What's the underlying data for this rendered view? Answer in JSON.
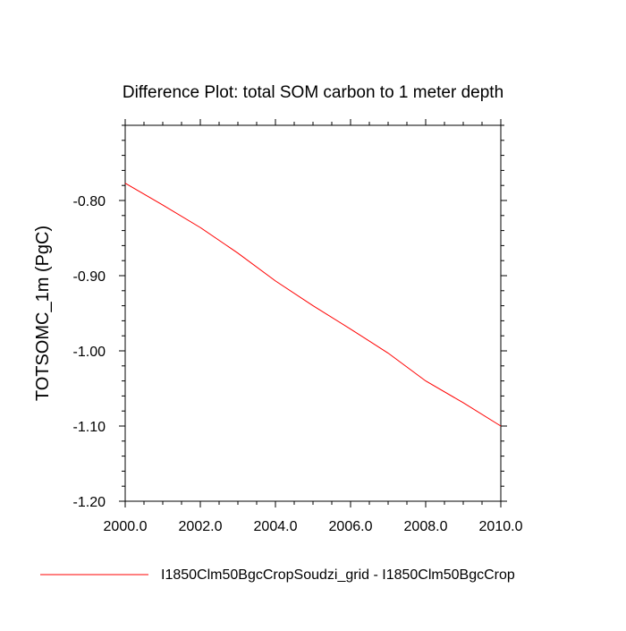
{
  "chart_data": {
    "type": "line",
    "title": "Difference Plot: total SOM carbon to 1 meter depth",
    "xlabel": "",
    "ylabel": "TOTSOMC_1m  (PgC)",
    "xlim": [
      2000,
      2010
    ],
    "ylim": [
      -1.2,
      -0.7
    ],
    "x_ticks": [
      2000,
      2002,
      2004,
      2006,
      2008,
      2010
    ],
    "x_tick_labels": [
      "2000.0",
      "2002.0",
      "2004.0",
      "2006.0",
      "2008.0",
      "2010.0"
    ],
    "y_ticks": [
      -1.2,
      -1.1,
      -1.0,
      -0.9,
      -0.8
    ],
    "y_tick_labels": [
      "-1.20",
      "-1.10",
      "-1.00",
      "-0.90",
      "-0.80"
    ],
    "grid": false,
    "legend_position": "bottom",
    "series": [
      {
        "name": "I1850Clm50BgcCropSoudzi_grid - I1850Clm50BgcCrop",
        "color": "#ff0000",
        "x": [
          2000,
          2001,
          2002,
          2003,
          2004,
          2005,
          2006,
          2007,
          2008,
          2009,
          2010
        ],
        "y": [
          -0.777,
          -0.806,
          -0.836,
          -0.87,
          -0.907,
          -0.94,
          -0.971,
          -1.003,
          -1.04,
          -1.069,
          -1.1
        ]
      }
    ]
  }
}
